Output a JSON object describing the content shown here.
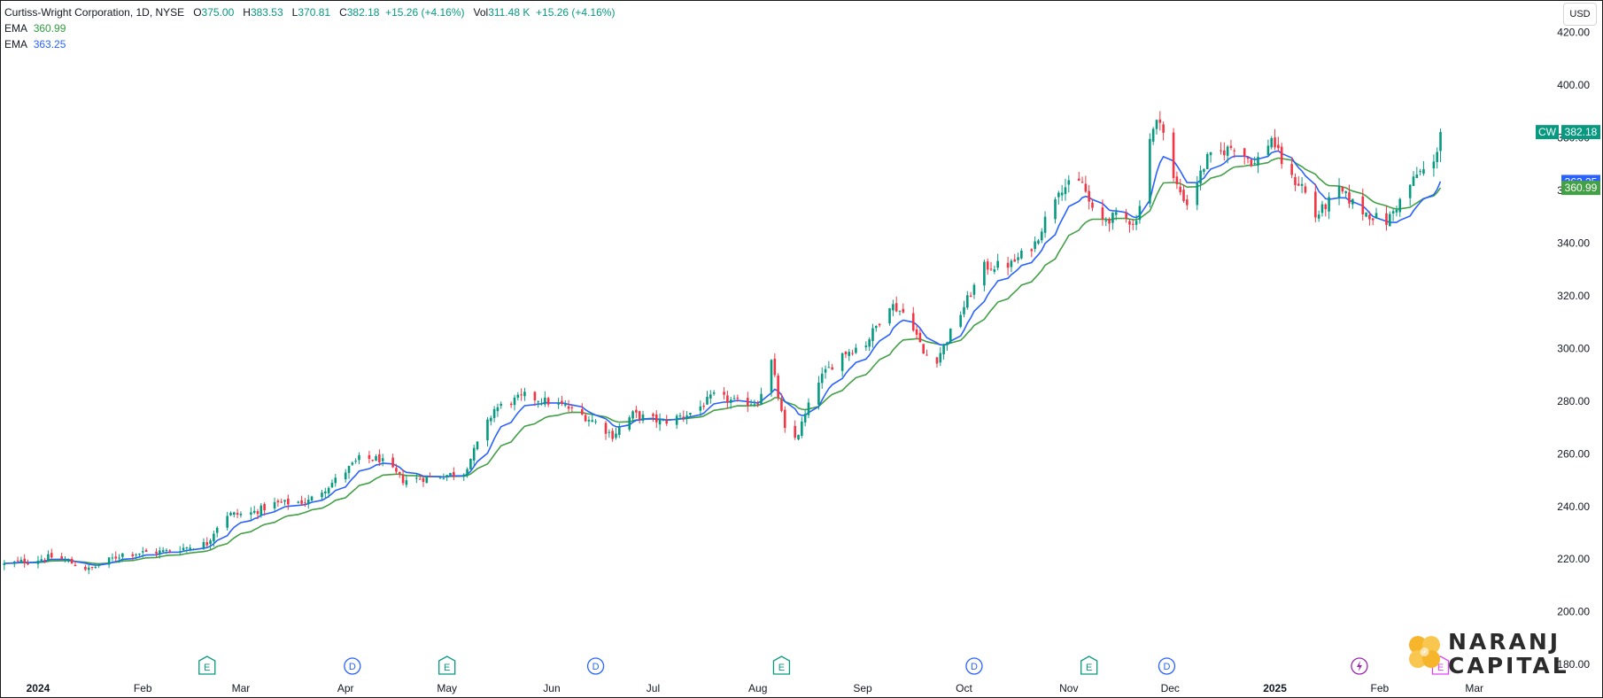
{
  "header": {
    "symbol_name": "Curtiss-Wright Corporation, 1D, NYSE",
    "open_label": "O",
    "open": "375.00",
    "high_label": "H",
    "high": "383.53",
    "low_label": "L",
    "low": "370.81",
    "close_label": "C",
    "close": "382.18",
    "change": "+15.26 (+4.16%)",
    "vol_label": "Vol",
    "volume": "311.48 K",
    "vol_change": "+15.26 (+4.16%)"
  },
  "indicators": [
    {
      "label": "EMA",
      "value": "360.99",
      "color": "#2e9e3e"
    },
    {
      "label": "EMA",
      "value": "363.25",
      "color": "#2962ff"
    }
  ],
  "currency": "USD",
  "price_tags": {
    "ticker": "CW",
    "last": "382.18",
    "ema_fast": "363.25",
    "ema_slow": "360.99"
  },
  "colors": {
    "up": "#089981",
    "down": "#f23645",
    "ema_fast": "#2962ff",
    "ema_slow": "#43a047",
    "earnings": "#089981",
    "dividend": "#2962ff",
    "split": "#9c27b0"
  },
  "logo": {
    "line1": "NARANJ",
    "line2": "CAPITAL"
  },
  "chart_data": {
    "type": "candlestick",
    "title": "Curtiss-Wright Corporation, 1D, NYSE",
    "ylim": [
      175,
      430
    ],
    "y_ticks": [
      180,
      200,
      220,
      240,
      260,
      280,
      300,
      320,
      340,
      360,
      380,
      400,
      420
    ],
    "x_labels": [
      {
        "label": "2024",
        "day": 0,
        "bold": true
      },
      {
        "label": "Feb",
        "day": 31
      },
      {
        "label": "Mar",
        "day": 60
      },
      {
        "label": "Apr",
        "day": 91
      },
      {
        "label": "May",
        "day": 121
      },
      {
        "label": "Jun",
        "day": 152
      },
      {
        "label": "Jul",
        "day": 182
      },
      {
        "label": "Aug",
        "day": 213
      },
      {
        "label": "Sep",
        "day": 244
      },
      {
        "label": "Oct",
        "day": 274
      },
      {
        "label": "Nov",
        "day": 305
      },
      {
        "label": "Dec",
        "day": 335
      },
      {
        "label": "2025",
        "day": 366,
        "bold": true
      },
      {
        "label": "Feb",
        "day": 397
      },
      {
        "label": "Mar",
        "day": 425
      }
    ],
    "x_range_days": [
      -11,
      445
    ],
    "price_path": [
      [
        -10,
        218
      ],
      [
        5,
        221
      ],
      [
        15,
        216
      ],
      [
        25,
        222
      ],
      [
        38,
        223
      ],
      [
        50,
        226
      ],
      [
        55,
        237
      ],
      [
        62,
        237
      ],
      [
        70,
        241
      ],
      [
        80,
        242
      ],
      [
        88,
        250
      ],
      [
        95,
        258
      ],
      [
        101,
        258
      ],
      [
        108,
        250
      ],
      [
        116,
        251
      ],
      [
        126,
        253
      ],
      [
        135,
        277
      ],
      [
        144,
        282
      ],
      [
        150,
        280
      ],
      [
        156,
        278
      ],
      [
        165,
        272
      ],
      [
        170,
        267
      ],
      [
        176,
        275
      ],
      [
        185,
        272
      ],
      [
        194,
        276
      ],
      [
        200,
        282
      ],
      [
        208,
        279
      ],
      [
        213,
        280
      ],
      [
        217,
        295
      ],
      [
        222,
        262
      ],
      [
        225,
        268
      ],
      [
        231,
        288
      ],
      [
        238,
        298
      ],
      [
        245,
        302
      ],
      [
        252,
        317
      ],
      [
        258,
        312
      ],
      [
        262,
        298
      ],
      [
        266,
        296
      ],
      [
        272,
        311
      ],
      [
        280,
        331
      ],
      [
        288,
        332
      ],
      [
        295,
        340
      ],
      [
        302,
        361
      ],
      [
        309,
        363
      ],
      [
        313,
        348
      ],
      [
        319,
        350
      ],
      [
        325,
        348
      ],
      [
        329,
        380
      ],
      [
        332,
        388
      ],
      [
        336,
        364
      ],
      [
        340,
        355
      ],
      [
        346,
        372
      ],
      [
        354,
        377
      ],
      [
        360,
        370
      ],
      [
        365,
        380
      ],
      [
        370,
        365
      ],
      [
        374,
        362
      ],
      [
        378,
        350
      ],
      [
        385,
        360
      ],
      [
        392,
        352
      ],
      [
        399,
        348
      ],
      [
        404,
        358
      ],
      [
        408,
        366
      ],
      [
        413,
        370
      ],
      [
        415,
        382.18
      ]
    ],
    "ema_fast_last": 363.25,
    "ema_slow_last": 360.99,
    "event_markers": [
      {
        "type": "E",
        "day": 50
      },
      {
        "type": "D",
        "day": 93
      },
      {
        "type": "E",
        "day": 121
      },
      {
        "type": "D",
        "day": 165
      },
      {
        "type": "E",
        "day": 220
      },
      {
        "type": "D",
        "day": 277
      },
      {
        "type": "E",
        "day": 311
      },
      {
        "type": "D",
        "day": 334
      },
      {
        "type": "S",
        "day": 391
      },
      {
        "type": "E",
        "day": 415
      }
    ]
  }
}
